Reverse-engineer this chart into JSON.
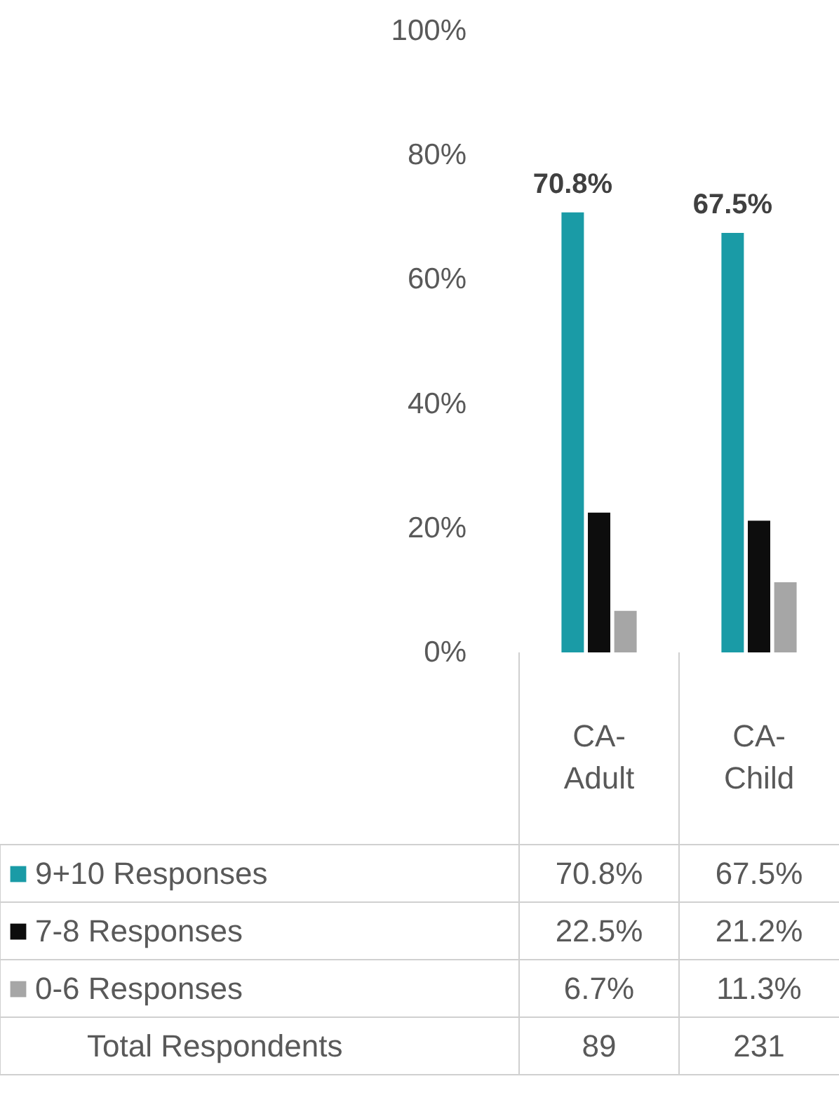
{
  "chart_data": {
    "type": "bar",
    "categories": [
      "CA-Adult",
      "CA-Child"
    ],
    "series": [
      {
        "name": "9+10 Responses",
        "color": "#1a9ba6",
        "values": [
          70.8,
          67.5
        ],
        "value_labels": [
          "70.8%",
          "67.5%"
        ]
      },
      {
        "name": "7-8 Responses",
        "color": "#0d0d0d",
        "values": [
          22.5,
          21.2
        ],
        "value_labels": [
          "22.5%",
          "21.2%"
        ]
      },
      {
        "name": "0-6 Responses",
        "color": "#a6a6a6",
        "values": [
          6.7,
          11.3
        ],
        "value_labels": [
          "6.7%",
          "11.3%"
        ]
      }
    ],
    "ylim": [
      0,
      100
    ],
    "yticks": [
      {
        "value": 0,
        "label": "0%"
      },
      {
        "value": 20,
        "label": "20%"
      },
      {
        "value": 40,
        "label": "40%"
      },
      {
        "value": 60,
        "label": "60%"
      },
      {
        "value": 80,
        "label": "80%"
      },
      {
        "value": 100,
        "label": "100%"
      }
    ],
    "annotations": [
      "70.8%",
      "67.5%",
      "Total Respondents",
      "89",
      "231"
    ],
    "grid": false,
    "legend": "bottom"
  }
}
